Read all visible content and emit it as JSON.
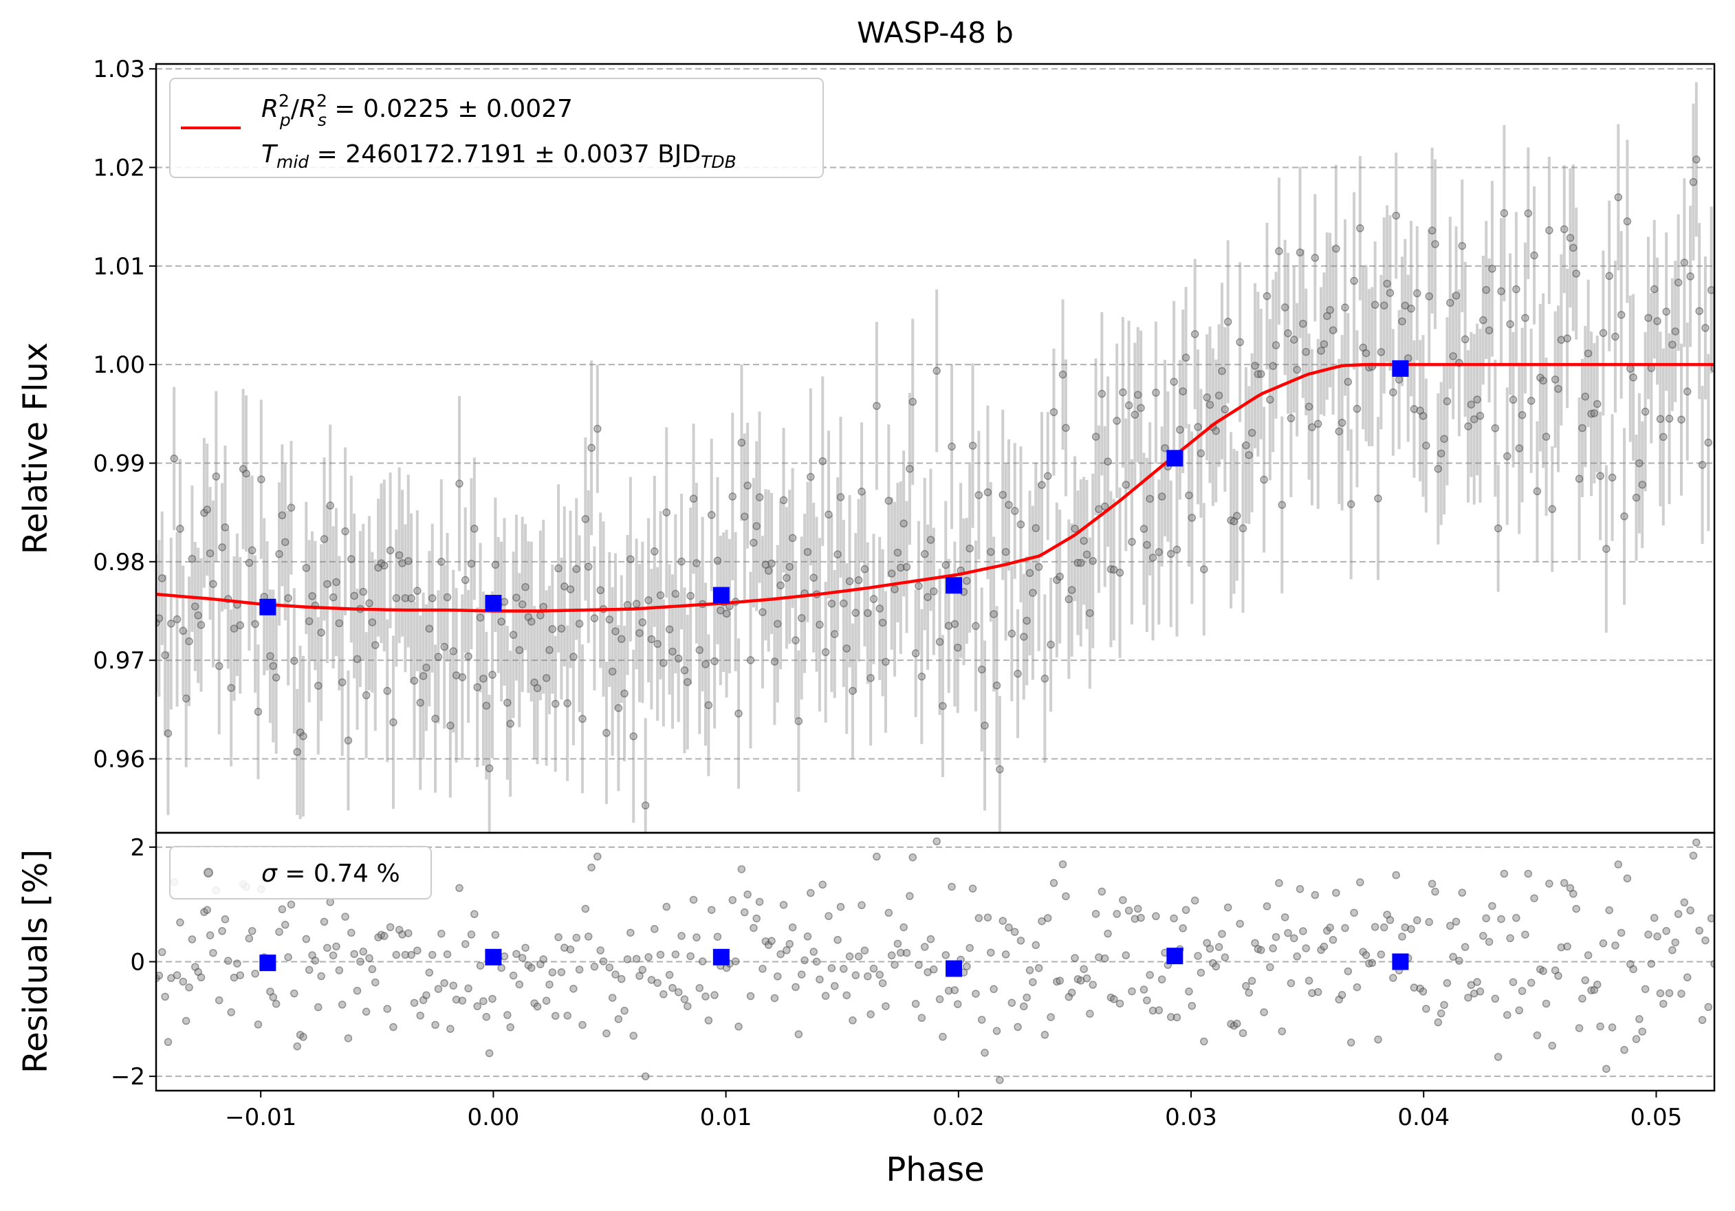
{
  "chart_data": [
    {
      "type": "scatter",
      "title": "WASP-48 b",
      "xlabel": "",
      "ylabel": "Relative Flux",
      "xlim": [
        -0.0145,
        0.0525
      ],
      "ylim": [
        0.9525,
        1.0305
      ],
      "yticks": [
        0.96,
        0.97,
        0.98,
        0.99,
        1.0,
        1.01,
        1.02,
        1.03
      ],
      "ytick_labels": [
        "0.96",
        "0.97",
        "0.98",
        "0.99",
        "1.00",
        "1.01",
        "1.02",
        "1.03"
      ],
      "grid": "horizontal dashed",
      "legend_position": "top-left",
      "legend": {
        "line1_prefix": "R",
        "line1_p": "p",
        "line1_s": "s",
        "line1_value": " = 0.0225 ± 0.0027",
        "line2_T": "T",
        "line2_mid": "mid",
        "line2_value": " = 2460172.7191 ± 0.0037 BJD",
        "line2_tdb": "TDB"
      },
      "model": {
        "name": "transit model",
        "color": "#ff0000",
        "x": [
          -0.0145,
          -0.012,
          -0.01,
          -0.008,
          -0.006,
          -0.004,
          -0.002,
          0.0,
          0.002,
          0.004,
          0.006,
          0.008,
          0.01,
          0.012,
          0.014,
          0.016,
          0.018,
          0.02,
          0.022,
          0.0235,
          0.025,
          0.027,
          0.029,
          0.031,
          0.033,
          0.035,
          0.0365,
          0.0375,
          0.04,
          0.045,
          0.05,
          0.0525
        ],
        "y": [
          0.9767,
          0.9762,
          0.9757,
          0.9754,
          0.9752,
          0.9751,
          0.9751,
          0.975,
          0.975,
          0.9751,
          0.9752,
          0.9755,
          0.9758,
          0.9762,
          0.9767,
          0.9773,
          0.978,
          0.9787,
          0.9797,
          0.9806,
          0.9827,
          0.9863,
          0.9902,
          0.994,
          0.997,
          0.999,
          0.9999,
          1.0,
          1.0,
          1.0,
          1.0,
          1.0
        ]
      },
      "binned": {
        "name": "binned data",
        "color": "#0000ff",
        "x": [
          -0.0097,
          0.0,
          0.0098,
          0.0198,
          0.0293,
          0.039
        ],
        "y": [
          0.9754,
          0.9758,
          0.9766,
          0.9776,
          0.9905,
          0.9996
        ]
      },
      "raw": {
        "name": "observations",
        "color": "#808080",
        "n_points": 520,
        "phase_range": [
          -0.0145,
          0.0525
        ],
        "scatter_std": 0.0074,
        "errorbar_half": 0.0075
      }
    },
    {
      "type": "scatter",
      "title": "",
      "xlabel": "Phase",
      "ylabel": "Residuals [%]",
      "xlim": [
        -0.0145,
        0.0525
      ],
      "ylim": [
        -2.25,
        2.25
      ],
      "yticks": [
        -2,
        0,
        2
      ],
      "ytick_labels": [
        "−2",
        "0",
        "2"
      ],
      "xticks": [
        -0.01,
        0.0,
        0.01,
        0.02,
        0.03,
        0.04,
        0.05
      ],
      "xtick_labels": [
        "−0.01",
        "0.00",
        "0.01",
        "0.02",
        "0.03",
        "0.04",
        "0.05"
      ],
      "grid": "horizontal dashed",
      "legend_position": "top-left",
      "legend": {
        "sigma_symbol": "σ",
        "sigma_value": " = 0.74 %"
      },
      "binned": {
        "name": "binned residuals",
        "color": "#0000ff",
        "x": [
          -0.0097,
          0.0,
          0.0098,
          0.0198,
          0.0293,
          0.039
        ],
        "y": [
          -0.02,
          0.08,
          0.08,
          -0.12,
          0.1,
          0.0
        ]
      },
      "raw": {
        "name": "residual observations",
        "color": "#808080",
        "n_points": 520,
        "std_percent": 0.74
      }
    }
  ]
}
